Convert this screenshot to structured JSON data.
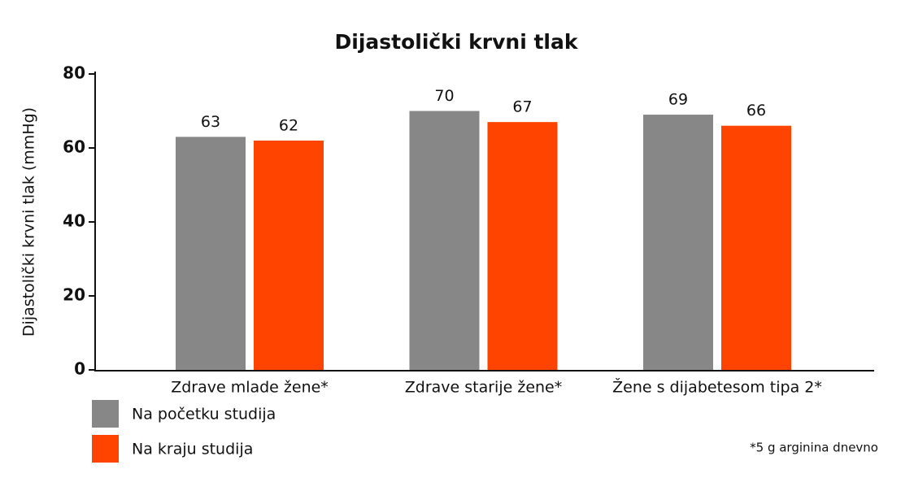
{
  "chart_data": {
    "type": "bar",
    "title": "Dijastolički krvni tlak",
    "y_label": "Dijastolički krvni tlak (mmHg)",
    "categories": [
      "Zdrave mlade žene*",
      "Zdrave starije žene*",
      "Žene s dijabetesom tipa 2*"
    ],
    "series": [
      {
        "name": "Na početku studija",
        "color": "#878787",
        "values": [
          63,
          70,
          69
        ]
      },
      {
        "name": "Na kraju studija",
        "color": "#ff4400",
        "values": [
          62,
          67,
          66
        ]
      }
    ],
    "ylim": [
      0,
      80
    ],
    "yticks": [
      0,
      20,
      40,
      60,
      80
    ],
    "grid": false,
    "legend": "bottom-left",
    "footnote": "*5 g arginina dnevno"
  }
}
